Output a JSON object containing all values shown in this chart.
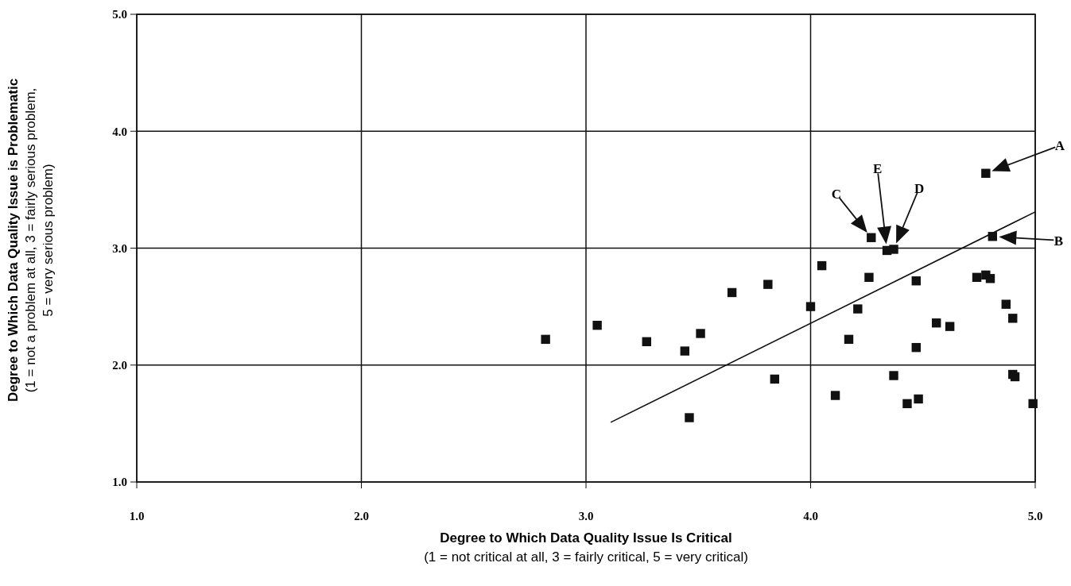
{
  "chart_data": {
    "type": "scatter",
    "xlabel": "Degree to Which Data Quality Issue Is Critical\n(1 = not critical at all, 3 = fairly critical, 5 = very critical)",
    "ylabel": "Degree to Which Data Quality Issue is Problematic\n(1 = not a problem at all, 3 = fairly serious problem,\n5 = very serious problem)",
    "xlim": [
      1,
      5
    ],
    "ylim": [
      1,
      5
    ],
    "xticks": [
      {
        "value": 1,
        "label": "1.0"
      },
      {
        "value": 2,
        "label": "2.0"
      },
      {
        "value": 3,
        "label": "3.0"
      },
      {
        "value": 4,
        "label": "4.0"
      },
      {
        "value": 5,
        "label": "5.0"
      }
    ],
    "yticks": [
      {
        "value": 1,
        "label": "1.0"
      },
      {
        "value": 2,
        "label": "2.0"
      },
      {
        "value": 3,
        "label": "3.0"
      },
      {
        "value": 4,
        "label": "4.0"
      },
      {
        "value": 5,
        "label": "5.0"
      }
    ],
    "grid": true,
    "marker": "square",
    "series": [
      {
        "type": "scatter",
        "color": "#111111",
        "x": [
          2.82,
          3.05,
          3.27,
          3.44,
          3.51,
          3.65,
          3.81,
          4.0,
          3.84,
          3.46,
          4.78,
          4.27,
          4.34,
          4.37,
          4.81,
          4.05,
          4.26,
          4.47,
          4.74,
          4.78,
          4.8,
          4.21,
          4.87,
          4.9,
          4.56,
          4.62,
          4.17,
          4.47,
          4.37,
          4.9,
          4.91,
          4.11,
          4.43,
          4.48,
          4.99
        ],
        "values": [
          2.22,
          2.34,
          2.2,
          2.12,
          2.27,
          2.62,
          2.69,
          2.5,
          1.88,
          1.55,
          3.64,
          3.09,
          2.98,
          2.99,
          3.1,
          2.85,
          2.75,
          2.72,
          2.75,
          2.77,
          2.74,
          2.48,
          2.52,
          2.4,
          2.36,
          2.33,
          2.22,
          2.15,
          1.91,
          1.92,
          1.9,
          1.74,
          1.67,
          1.71,
          1.67
        ]
      },
      {
        "type": "line",
        "marker": "none",
        "color": "#111111",
        "x": [
          3.11,
          5.0
        ],
        "values": [
          1.51,
          3.31
        ]
      }
    ],
    "annotations": [
      "A",
      "B",
      "C",
      "E",
      "D"
    ]
  }
}
